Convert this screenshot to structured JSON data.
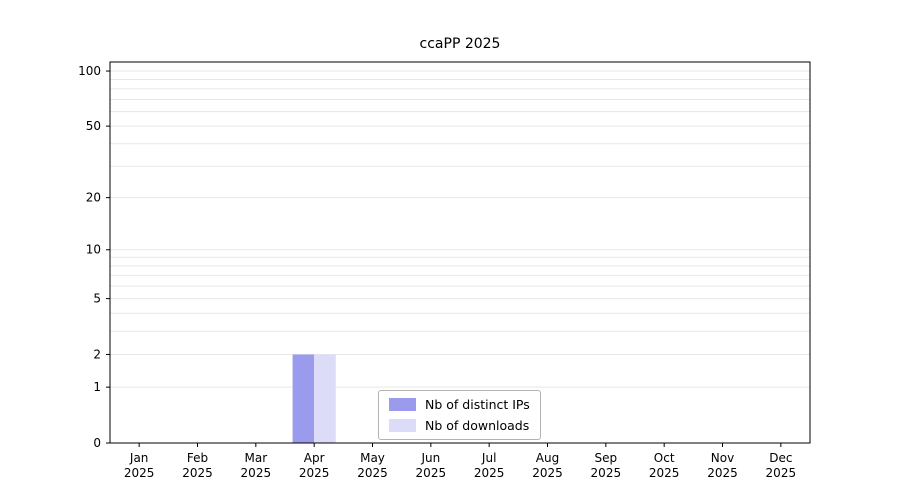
{
  "chart_data": {
    "type": "bar",
    "title": "ccaPP 2025",
    "categories": [
      "Jan",
      "Feb",
      "Mar",
      "Apr",
      "May",
      "Jun",
      "Jul",
      "Aug",
      "Sep",
      "Oct",
      "Nov",
      "Dec"
    ],
    "year_label": "2025",
    "series": [
      {
        "name": "Nb of distinct IPs",
        "color": "#9b9bee",
        "values": [
          0,
          0,
          0,
          2,
          0,
          0,
          0,
          0,
          0,
          0,
          0,
          0
        ]
      },
      {
        "name": "Nb of downloads",
        "color": "#dcdcf8",
        "values": [
          0,
          0,
          0,
          2,
          0,
          0,
          0,
          0,
          0,
          0,
          0,
          0
        ]
      }
    ],
    "yticks": [
      0,
      1,
      2,
      5,
      10,
      20,
      50,
      100
    ],
    "grid_values": [
      1,
      2,
      3,
      4,
      5,
      6,
      7,
      8,
      9,
      10,
      20,
      30,
      40,
      50,
      60,
      70,
      80,
      90,
      100
    ],
    "scale": "log1p",
    "ylim": [
      0,
      112
    ],
    "grid": "horizontal",
    "grid_color": "#e7e7e7",
    "axis_color": "#000000",
    "legend_position": "lower-center-inside"
  }
}
